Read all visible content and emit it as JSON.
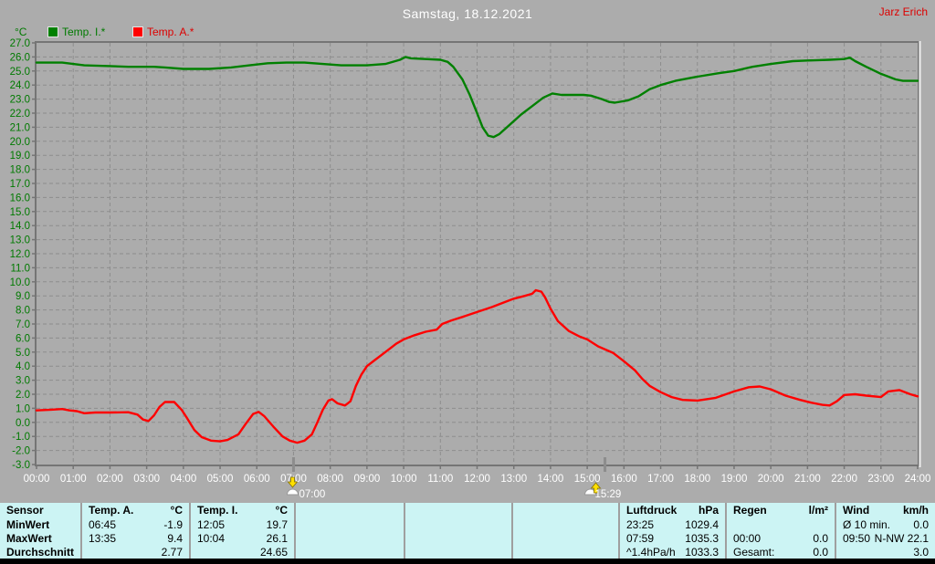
{
  "header": {
    "title": "Samstag, 18.12.2021",
    "user": "Jarz Erich"
  },
  "legend": {
    "unit": "°C",
    "series": [
      {
        "label": "Temp. I.*",
        "color": "#008000",
        "text_color": "#007a00"
      },
      {
        "label": "Temp. A.*",
        "color": "#ff0000",
        "text_color": "#dd0000"
      }
    ]
  },
  "chart_data": {
    "type": "line",
    "title": "Samstag, 18.12.2021",
    "xlabel": "",
    "ylabel": "°C",
    "xlim": [
      0,
      24
    ],
    "ylim": [
      -3,
      27
    ],
    "grid": true,
    "legend_position": "top-left",
    "x_ticks": [
      "00:00",
      "01:00",
      "02:00",
      "03:00",
      "04:00",
      "05:00",
      "06:00",
      "07:00",
      "08:00",
      "09:00",
      "10:00",
      "11:00",
      "12:00",
      "13:00",
      "14:00",
      "15:00",
      "16:00",
      "17:00",
      "18:00",
      "19:00",
      "20:00",
      "21:00",
      "22:00",
      "23:00",
      "24:00"
    ],
    "y_ticks": [
      "27.0",
      "26.0",
      "25.0",
      "24.0",
      "23.0",
      "22.0",
      "21.0",
      "20.0",
      "19.0",
      "18.0",
      "17.0",
      "16.0",
      "15.0",
      "14.0",
      "13.0",
      "12.0",
      "11.0",
      "10.0",
      "9.0",
      "8.0",
      "7.0",
      "6.0",
      "5.0",
      "4.0",
      "3.0",
      "2.0",
      "1.0",
      "0.0",
      "-1.0",
      "-2.0",
      "-3.0"
    ],
    "series": [
      {
        "name": "Temp. I.*",
        "color": "#008000",
        "points": [
          [
            0,
            25.6
          ],
          [
            0.7,
            25.6
          ],
          [
            1,
            25.5
          ],
          [
            1.3,
            25.4
          ],
          [
            2,
            25.35
          ],
          [
            2.5,
            25.3
          ],
          [
            3.2,
            25.3
          ],
          [
            3.5,
            25.25
          ],
          [
            4,
            25.15
          ],
          [
            4.7,
            25.15
          ],
          [
            5.3,
            25.25
          ],
          [
            5.8,
            25.4
          ],
          [
            6.3,
            25.55
          ],
          [
            6.8,
            25.6
          ],
          [
            7.3,
            25.6
          ],
          [
            7.8,
            25.5
          ],
          [
            8.3,
            25.4
          ],
          [
            9,
            25.4
          ],
          [
            9.5,
            25.5
          ],
          [
            9.9,
            25.8
          ],
          [
            10.05,
            26.0
          ],
          [
            10.2,
            25.9
          ],
          [
            10.6,
            25.85
          ],
          [
            11,
            25.8
          ],
          [
            11.2,
            25.65
          ],
          [
            11.35,
            25.3
          ],
          [
            11.6,
            24.4
          ],
          [
            11.8,
            23.3
          ],
          [
            12,
            22.0
          ],
          [
            12.15,
            21.0
          ],
          [
            12.3,
            20.4
          ],
          [
            12.45,
            20.3
          ],
          [
            12.6,
            20.5
          ],
          [
            12.9,
            21.2
          ],
          [
            13.2,
            21.9
          ],
          [
            13.5,
            22.5
          ],
          [
            13.8,
            23.1
          ],
          [
            14.05,
            23.4
          ],
          [
            14.3,
            23.3
          ],
          [
            14.6,
            23.3
          ],
          [
            14.9,
            23.3
          ],
          [
            15.1,
            23.25
          ],
          [
            15.4,
            23.0
          ],
          [
            15.6,
            22.8
          ],
          [
            15.75,
            22.75
          ],
          [
            16.1,
            22.9
          ],
          [
            16.4,
            23.2
          ],
          [
            16.7,
            23.7
          ],
          [
            17,
            24.0
          ],
          [
            17.4,
            24.3
          ],
          [
            18,
            24.6
          ],
          [
            18.6,
            24.85
          ],
          [
            19,
            25.0
          ],
          [
            19.5,
            25.3
          ],
          [
            20,
            25.5
          ],
          [
            20.6,
            25.7
          ],
          [
            21,
            25.75
          ],
          [
            21.6,
            25.8
          ],
          [
            22,
            25.85
          ],
          [
            22.15,
            25.95
          ],
          [
            22.3,
            25.7
          ],
          [
            22.6,
            25.3
          ],
          [
            23,
            24.8
          ],
          [
            23.4,
            24.4
          ],
          [
            23.6,
            24.3
          ],
          [
            24,
            24.3
          ]
        ]
      },
      {
        "name": "Temp. A.*",
        "color": "#ff0000",
        "points": [
          [
            0,
            0.85
          ],
          [
            0.4,
            0.9
          ],
          [
            0.7,
            0.95
          ],
          [
            0.9,
            0.85
          ],
          [
            1.1,
            0.8
          ],
          [
            1.3,
            0.65
          ],
          [
            1.6,
            0.7
          ],
          [
            2,
            0.7
          ],
          [
            2.5,
            0.72
          ],
          [
            2.75,
            0.55
          ],
          [
            2.9,
            0.2
          ],
          [
            3.05,
            0.1
          ],
          [
            3.2,
            0.5
          ],
          [
            3.35,
            1.1
          ],
          [
            3.5,
            1.45
          ],
          [
            3.75,
            1.45
          ],
          [
            3.95,
            0.9
          ],
          [
            4.1,
            0.3
          ],
          [
            4.3,
            -0.55
          ],
          [
            4.5,
            -1.05
          ],
          [
            4.75,
            -1.3
          ],
          [
            5,
            -1.35
          ],
          [
            5.2,
            -1.25
          ],
          [
            5.5,
            -0.85
          ],
          [
            5.7,
            -0.1
          ],
          [
            5.9,
            0.6
          ],
          [
            6.05,
            0.75
          ],
          [
            6.2,
            0.45
          ],
          [
            6.45,
            -0.3
          ],
          [
            6.7,
            -1.0
          ],
          [
            6.9,
            -1.3
          ],
          [
            7.1,
            -1.45
          ],
          [
            7.3,
            -1.3
          ],
          [
            7.5,
            -0.85
          ],
          [
            7.65,
            0.0
          ],
          [
            7.8,
            0.9
          ],
          [
            7.95,
            1.55
          ],
          [
            8.05,
            1.65
          ],
          [
            8.2,
            1.35
          ],
          [
            8.4,
            1.2
          ],
          [
            8.55,
            1.5
          ],
          [
            8.7,
            2.6
          ],
          [
            8.85,
            3.4
          ],
          [
            9,
            4.0
          ],
          [
            9.2,
            4.4
          ],
          [
            9.5,
            5.0
          ],
          [
            9.8,
            5.6
          ],
          [
            10,
            5.9
          ],
          [
            10.3,
            6.2
          ],
          [
            10.6,
            6.45
          ],
          [
            10.9,
            6.6
          ],
          [
            11.05,
            7.0
          ],
          [
            11.3,
            7.25
          ],
          [
            11.6,
            7.5
          ],
          [
            12,
            7.85
          ],
          [
            12.4,
            8.2
          ],
          [
            12.7,
            8.5
          ],
          [
            13,
            8.8
          ],
          [
            13.3,
            9.0
          ],
          [
            13.5,
            9.15
          ],
          [
            13.6,
            9.4
          ],
          [
            13.75,
            9.3
          ],
          [
            13.85,
            8.9
          ],
          [
            14,
            8.1
          ],
          [
            14.2,
            7.2
          ],
          [
            14.5,
            6.5
          ],
          [
            14.8,
            6.1
          ],
          [
            15,
            5.9
          ],
          [
            15.3,
            5.4
          ],
          [
            15.7,
            4.95
          ],
          [
            16,
            4.35
          ],
          [
            16.3,
            3.7
          ],
          [
            16.5,
            3.1
          ],
          [
            16.7,
            2.6
          ],
          [
            17,
            2.15
          ],
          [
            17.3,
            1.8
          ],
          [
            17.6,
            1.6
          ],
          [
            18,
            1.55
          ],
          [
            18.5,
            1.75
          ],
          [
            19,
            2.2
          ],
          [
            19.4,
            2.5
          ],
          [
            19.7,
            2.55
          ],
          [
            20,
            2.35
          ],
          [
            20.4,
            1.9
          ],
          [
            20.8,
            1.6
          ],
          [
            21.1,
            1.4
          ],
          [
            21.4,
            1.25
          ],
          [
            21.6,
            1.2
          ],
          [
            21.8,
            1.5
          ],
          [
            22,
            1.95
          ],
          [
            22.3,
            2.0
          ],
          [
            22.6,
            1.9
          ],
          [
            23,
            1.8
          ],
          [
            23.2,
            2.2
          ],
          [
            23.5,
            2.3
          ],
          [
            23.8,
            2.0
          ],
          [
            24,
            1.85
          ]
        ]
      }
    ],
    "markers": [
      {
        "label": "07:00",
        "hour": 7.0,
        "type": "sunrise"
      },
      {
        "label": "15:29",
        "hour": 15.483,
        "type": "sunset"
      }
    ]
  },
  "table": {
    "row_labels": [
      "Sensor",
      "MinWert",
      "MaxWert",
      "Durchschnitt"
    ],
    "columns": [
      {
        "name": "Temp. A.",
        "unit": "°C",
        "rows": [
          [
            "06:45",
            "-1.9"
          ],
          [
            "13:35",
            "9.4"
          ],
          [
            "",
            "2.77"
          ]
        ]
      },
      {
        "name": "Temp. I.",
        "unit": "°C",
        "rows": [
          [
            "12:05",
            "19.7"
          ],
          [
            "10:04",
            "26.1"
          ],
          [
            "",
            "24.65"
          ]
        ]
      },
      {
        "name": "",
        "unit": "",
        "rows": [
          [
            "",
            ""
          ],
          [
            "",
            ""
          ],
          [
            "",
            ""
          ]
        ]
      },
      {
        "name": "",
        "unit": "",
        "rows": [
          [
            "",
            ""
          ],
          [
            "",
            ""
          ],
          [
            "",
            ""
          ]
        ]
      },
      {
        "name": "",
        "unit": "",
        "rows": [
          [
            "",
            ""
          ],
          [
            "",
            ""
          ],
          [
            "",
            ""
          ]
        ]
      },
      {
        "name": "Luftdruck",
        "unit": "hPa",
        "rows": [
          [
            "23:25",
            "1029.4"
          ],
          [
            "07:59",
            "1035.3"
          ],
          [
            "^1.4hPa/h",
            "1033.3"
          ]
        ]
      },
      {
        "name": "Regen",
        "unit": "l/m²",
        "rows": [
          [
            "",
            ""
          ],
          [
            "00:00",
            "0.0"
          ],
          [
            "Gesamt:",
            "0.0"
          ]
        ]
      },
      {
        "name": "Wind",
        "unit": "km/h",
        "rows": [
          [
            "Ø 10 min.",
            "0.0"
          ],
          [
            "09:50",
            "N-NW 22.1"
          ],
          [
            "",
            "3.0"
          ]
        ]
      }
    ]
  }
}
